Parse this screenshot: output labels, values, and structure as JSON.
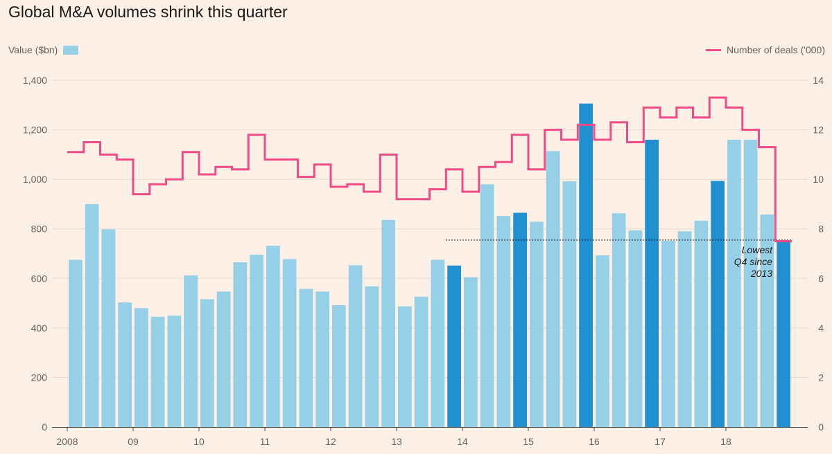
{
  "chart_data": {
    "type": "bar",
    "title": "Global M&A volumes shrink this quarter",
    "xlabel": "",
    "ylabel": "Value ($bn)",
    "y2label": "Number of deals ('000)",
    "ylim": [
      0,
      1400
    ],
    "y2lim": [
      0,
      14
    ],
    "grid": true,
    "legend_position": "top",
    "y_ticks": [
      0,
      200,
      400,
      600,
      800,
      1000,
      1200,
      1400
    ],
    "y_tick_labels": [
      "0",
      "200",
      "400",
      "600",
      "800",
      "1,000",
      "1,200",
      "1,400"
    ],
    "y2_ticks": [
      0,
      2,
      4,
      6,
      8,
      10,
      12,
      14
    ],
    "y2_tick_labels": [
      "0",
      "2",
      "4",
      "6",
      "8",
      "10",
      "12",
      "14"
    ],
    "x_tick_labels": [
      "2008",
      "09",
      "10",
      "11",
      "12",
      "13",
      "14",
      "15",
      "16",
      "17",
      "18"
    ],
    "categories": [
      "2008 Q1",
      "2008 Q2",
      "2008 Q3",
      "2008 Q4",
      "2009 Q1",
      "2009 Q2",
      "2009 Q3",
      "2009 Q4",
      "2010 Q1",
      "2010 Q2",
      "2010 Q3",
      "2010 Q4",
      "2011 Q1",
      "2011 Q2",
      "2011 Q3",
      "2011 Q4",
      "2012 Q1",
      "2012 Q2",
      "2012 Q3",
      "2012 Q4",
      "2013 Q1",
      "2013 Q2",
      "2013 Q3",
      "2013 Q4",
      "2014 Q1",
      "2014 Q2",
      "2014 Q3",
      "2014 Q4",
      "2015 Q1",
      "2015 Q2",
      "2015 Q3",
      "2015 Q4",
      "2016 Q1",
      "2016 Q2",
      "2016 Q3",
      "2016 Q4",
      "2017 Q1",
      "2017 Q2",
      "2017 Q3",
      "2017 Q4",
      "2018 Q1",
      "2018 Q2",
      "2018 Q3",
      "2018 Q4"
    ],
    "series": [
      {
        "name": "Value ($bn)",
        "type": "bar",
        "color": "#96d0e6",
        "highlight_color": "#2190d0",
        "highlight_note": "Q4 bars highlighted from 2013",
        "values": [
          675,
          900,
          798,
          503,
          480,
          445,
          450,
          612,
          516,
          547,
          665,
          696,
          732,
          678,
          558,
          547,
          492,
          653,
          568,
          836,
          487,
          526,
          675,
          652,
          605,
          980,
          852,
          865,
          829,
          1114,
          992,
          1306,
          693,
          863,
          794,
          1160,
          752,
          790,
          833,
          994,
          1160,
          1160,
          858,
          750
        ],
        "highlighted": [
          false,
          false,
          false,
          false,
          false,
          false,
          false,
          false,
          false,
          false,
          false,
          false,
          false,
          false,
          false,
          false,
          false,
          false,
          false,
          false,
          false,
          false,
          false,
          true,
          false,
          false,
          false,
          true,
          false,
          false,
          false,
          true,
          false,
          false,
          false,
          true,
          false,
          false,
          false,
          true,
          false,
          false,
          false,
          true
        ]
      },
      {
        "name": "Number of deals ('000)",
        "type": "step-line",
        "color": "#ef4b87",
        "values": [
          11.1,
          11.5,
          11.0,
          10.8,
          9.4,
          9.8,
          10.0,
          11.1,
          10.2,
          10.5,
          10.4,
          11.8,
          10.8,
          10.8,
          10.1,
          10.6,
          9.7,
          9.8,
          9.5,
          11.0,
          9.2,
          9.2,
          9.6,
          10.4,
          9.5,
          10.5,
          10.7,
          11.8,
          10.4,
          12.0,
          11.6,
          12.2,
          11.6,
          12.3,
          11.5,
          12.9,
          12.5,
          12.9,
          12.5,
          13.3,
          12.9,
          12.0,
          11.3,
          7.5
        ]
      }
    ],
    "reference_line": {
      "value": 755,
      "style": "dotted",
      "label_lines": [
        "Lowest",
        "Q4 since",
        "2013"
      ]
    }
  },
  "legend": {
    "left_label": "Value ($bn)",
    "right_label": "Number of deals ('000)"
  }
}
